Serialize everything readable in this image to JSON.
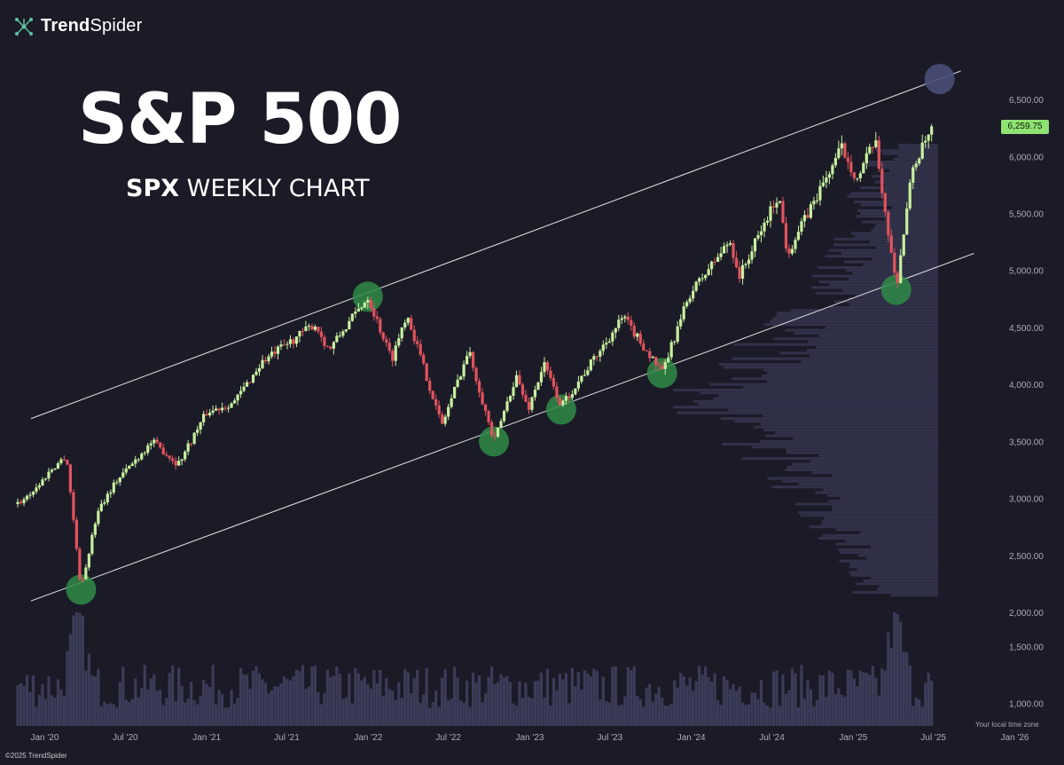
{
  "brand": {
    "name_bold": "Trend",
    "name_light": "Spider"
  },
  "header": {
    "title": "S&P 500",
    "subtitle_bold": "SPX",
    "subtitle_rest": " WEEKLY CHART"
  },
  "footer": {
    "copyright": "©2025 TrendSpider",
    "timezone": "Your local time zone"
  },
  "colors": {
    "background": "#1b1b27",
    "up": "#c8ef9f",
    "down": "#e2535d",
    "volume": "#3b3c58",
    "volume_profile": "#313249",
    "channel": "#e6e6ec",
    "touch_marker": "#2f8a48",
    "target_marker": "#4b4f78",
    "price_tag": "#8fe372"
  },
  "chart_data": {
    "type": "candlestick",
    "ticker": "SPX",
    "timeframe": "weekly",
    "title": "S&P 500",
    "x_ticks": [
      "Jan '20",
      "Jul '20",
      "Jan '21",
      "Jul '21",
      "Jan '22",
      "Jul '22",
      "Jan '23",
      "Jul '23",
      "Jan '24",
      "Jul '24",
      "Jan '25",
      "Jul '25",
      "Jan '26"
    ],
    "y_ticks": [
      6500,
      6000,
      5500,
      5000,
      4500,
      4000,
      3500,
      3000,
      2500,
      2000
    ],
    "y_tick_labels": [
      "6,500.00",
      "6,000.00",
      "5,500.00",
      "5,000.00",
      "4,500.00",
      "4,000.00",
      "3,500.00",
      "3,000.00",
      "2,500.00",
      "2,000.00"
    ],
    "volume_ticks": [
      1500,
      1000
    ],
    "volume_tick_labels": [
      "1,500.00",
      "1,000.00"
    ],
    "last_price": 6259.75,
    "last_price_label": "6,259.75",
    "xlim": [
      "2019-11-01",
      "2026-02-01"
    ],
    "ylim": [
      2000,
      6750
    ],
    "price_path": [
      [
        "2019-11-01",
        2950
      ],
      [
        "2019-12-15",
        3100
      ],
      [
        "2020-01-15",
        3250
      ],
      [
        "2020-02-19",
        3380
      ],
      [
        "2020-03-23",
        2200
      ],
      [
        "2020-04-30",
        2900
      ],
      [
        "2020-06-10",
        3150
      ],
      [
        "2020-08-31",
        3500
      ],
      [
        "2020-10-28",
        3300
      ],
      [
        "2020-12-31",
        3750
      ],
      [
        "2021-03-05",
        3850
      ],
      [
        "2021-05-07",
        4200
      ],
      [
        "2021-09-02",
        4530
      ],
      [
        "2021-10-04",
        4300
      ],
      [
        "2021-12-31",
        4770
      ],
      [
        "2022-02-23",
        4220
      ],
      [
        "2022-03-29",
        4630
      ],
      [
        "2022-06-16",
        3640
      ],
      [
        "2022-08-16",
        4300
      ],
      [
        "2022-10-12",
        3490
      ],
      [
        "2022-12-01",
        4080
      ],
      [
        "2022-12-28",
        3780
      ],
      [
        "2023-02-02",
        4180
      ],
      [
        "2023-03-13",
        3810
      ],
      [
        "2023-07-31",
        4590
      ],
      [
        "2023-10-27",
        4100
      ],
      [
        "2023-12-28",
        4790
      ],
      [
        "2024-03-28",
        5260
      ],
      [
        "2024-04-19",
        4950
      ],
      [
        "2024-07-16",
        5670
      ],
      [
        "2024-08-05",
        5150
      ],
      [
        "2024-12-06",
        6080
      ],
      [
        "2025-01-10",
        5800
      ],
      [
        "2025-02-19",
        6140
      ],
      [
        "2025-04-08",
        4850
      ],
      [
        "2025-05-15",
        5900
      ],
      [
        "2025-07-03",
        6280
      ]
    ],
    "volume": {
      "base": 1000,
      "spike_dates": [
        "2020-03-16",
        "2025-04-07"
      ],
      "range": [
        800,
        1800
      ]
    },
    "volume_profile": {
      "price_range": [
        2150,
        6100
      ],
      "peak_price": 3850
    },
    "channel": {
      "upper": [
        [
          "2019-12-01",
          3700
        ],
        [
          "2025-09-01",
          6750
        ]
      ],
      "lower": [
        [
          "2019-12-01",
          2100
        ],
        [
          "2025-10-01",
          5150
        ]
      ]
    },
    "touch_points": [
      [
        "2020-03-23",
        2200
      ],
      [
        "2021-12-31",
        4770
      ],
      [
        "2022-10-12",
        3500
      ],
      [
        "2023-03-13",
        3780
      ],
      [
        "2023-10-27",
        4100
      ],
      [
        "2025-04-08",
        4830
      ]
    ],
    "target_point": [
      "2025-07-15",
      6680
    ]
  }
}
